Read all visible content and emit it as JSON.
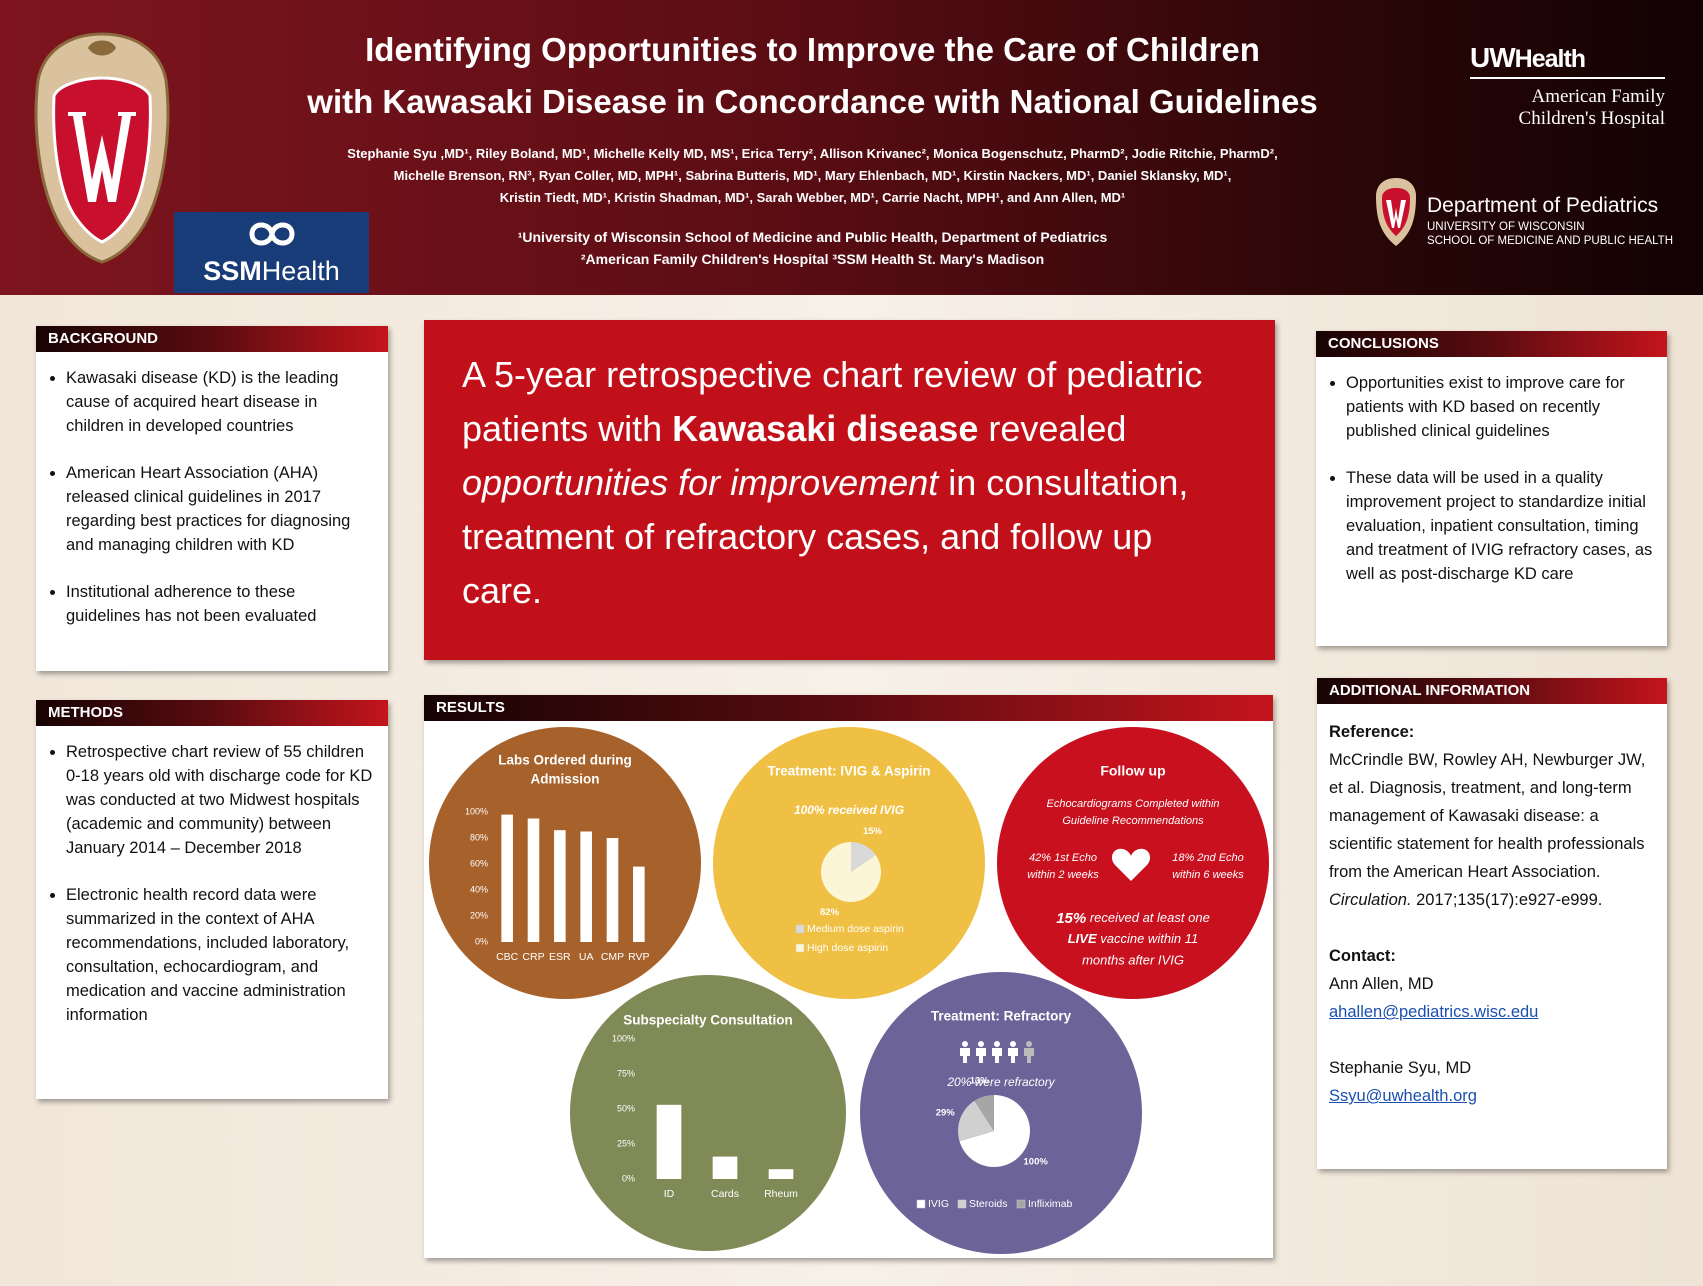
{
  "header": {
    "title": [
      "Identifying Opportunities to Improve the Care of Children",
      "with Kawasaki Disease in Concordance with National Guidelines"
    ],
    "authors": [
      "Stephanie Syu ,MD¹, Riley Boland, MD¹, Michelle Kelly MD, MS¹, Erica Terry², Allison Krivanec², Monica Bogenschutz, PharmD², Jodie Ritchie, PharmD²,",
      "Michelle Brenson, RN³, Ryan Coller, MD, MPH¹, Sabrina Butteris, MD¹, Mary Ehlenbach, MD¹, Kirstin Nackers, MD¹, Daniel Sklansky, MD¹,",
      "Kristin Tiedt, MD¹, Kristin Shadman, MD¹, Sarah Webber, MD¹, Carrie Nacht, MPH¹, and Ann Allen, MD¹"
    ],
    "affiliations": [
      "¹University of Wisconsin School of Medicine and Public Health, Department of Pediatrics",
      "²American Family Children's Hospital ³SSM Health St. Mary's Madison"
    ],
    "logos": {
      "ssm": [
        "SSM",
        "Health"
      ],
      "uw_health": [
        "UW",
        "Health"
      ],
      "hospital": [
        "American Family",
        "Children's Hospital"
      ],
      "department": "Department of Pediatrics",
      "university": "UNIVERSITY OF WISCONSIN",
      "school": "SCHOOL OF MEDICINE AND PUBLIC HEALTH"
    }
  },
  "background": {
    "heading": "BACKGROUND",
    "bullets": [
      "Kawasaki disease (KD) is the leading cause of acquired heart disease in children in developed countries",
      "American Heart Association (AHA) released clinical guidelines in 2017 regarding best practices for diagnosing and managing children with KD",
      "Institutional adherence to these guidelines has not been evaluated"
    ]
  },
  "methods": {
    "heading": "METHODS",
    "bullets": [
      "Retrospective chart review of 55 children 0-18 years old with discharge code for KD was conducted at two Midwest hospitals (academic and community) between January 2014 – December 2018",
      "Electronic health record data were summarized in the context of AHA recommendations, included laboratory, consultation, echocardiogram, and medication and vaccine administration information"
    ]
  },
  "statement": {
    "lead": "A 5-year retrospective chart review of pediatric patients with ",
    "bold": "Kawasaki disease",
    "mid": " revealed ",
    "italic": "opportunities for improvement",
    "end": " in consultation, treatment of refractory cases, and follow up care."
  },
  "results": {
    "heading": "RESULTS",
    "charts": [
      {
        "type": "bar",
        "title": [
          "Labs Ordered during",
          "Admission"
        ],
        "background": "#a7612a",
        "color": "#ffffff",
        "categories": [
          "CBC",
          "CRP",
          "ESR",
          "UA",
          "CMP",
          "RVP"
        ],
        "values": [
          98,
          95,
          86,
          85,
          80,
          58
        ],
        "ylim": [
          0,
          100
        ],
        "yticks": [
          {
            "value": 0,
            "label": "0%"
          },
          {
            "value": 20,
            "label": "20%"
          },
          {
            "value": 40,
            "label": "40%"
          },
          {
            "value": 60,
            "label": "60%"
          },
          {
            "value": 80,
            "label": "80%"
          },
          {
            "value": 100,
            "label": "100%"
          }
        ]
      },
      {
        "type": "pie",
        "title": [
          "Treatment: IVIG & Aspirin"
        ],
        "subtitle": "100% received IVIG",
        "background": "#efc043",
        "categories": [
          "Medium dose aspirin",
          "High dose aspirin"
        ],
        "values": [
          15,
          82
        ],
        "value_labels": [
          "15%",
          "82%"
        ],
        "colors": [
          "#d9d9d9",
          "#fcf6d6"
        ]
      },
      {
        "type": "bar",
        "title": [
          "Subspecialty Consultation"
        ],
        "background": "#7f8a56",
        "color": "#ffffff",
        "categories": [
          "ID",
          "Cards",
          "Rheum"
        ],
        "values": [
          53,
          16,
          7
        ],
        "ylim": [
          0,
          100
        ],
        "yticks": [
          {
            "value": 0,
            "label": "0%"
          },
          {
            "value": 25,
            "label": "25%"
          },
          {
            "value": 50,
            "label": "50%"
          },
          {
            "value": 75,
            "label": "75%"
          },
          {
            "value": 100,
            "label": "100%"
          }
        ]
      },
      {
        "type": "pie",
        "title": [
          "Treatment: Refractory"
        ],
        "subtitle": "20% were refractory",
        "background": "#6c6399",
        "categories": [
          "IVIG",
          "Steroids",
          "Infliximab"
        ],
        "values": [
          100,
          29,
          13
        ],
        "value_labels": [
          "100%",
          "29%",
          "13%"
        ],
        "colors": [
          "#ffffff",
          "#d0d0d0",
          "#a6a6a6"
        ]
      }
    ],
    "follow_up": {
      "title": "Follow up",
      "subtitle": [
        "Echocardiograms Completed within",
        "Guideline Recommendations"
      ],
      "first_echo": [
        "42% 1st Echo",
        "within 2 weeks"
      ],
      "second_echo": [
        "18% 2nd Echo",
        "within 6 weeks"
      ],
      "vaccine": {
        "bold1": "15%",
        "text1": " received at least one",
        "bold2": "LIVE",
        "text2": " vaccine within 11",
        "text3": "months after IVIG"
      }
    }
  },
  "conclusions": {
    "heading": "CONCLUSIONS",
    "bullets": [
      "Opportunities exist to improve care for patients with KD based on recently published clinical guidelines",
      "These data will be used in a quality improvement project to standardize initial evaluation, inpatient consultation, timing and treatment of IVIG refractory cases, as well as post-discharge KD care"
    ]
  },
  "additional": {
    "heading": "ADDITIONAL INFORMATION",
    "reference_label": "Reference:",
    "reference_text": "McCrindle BW, Rowley AH, Newburger JW,  et al. Diagnosis, treatment, and long-term management of Kawasaki disease: a scientific statement for health professionals from the American Heart Association. ",
    "reference_journal": "Circulation.",
    "reference_end": " 2017;135(17):e927-e999.",
    "contact_label": "Contact:",
    "contacts": [
      {
        "name": "Ann Allen, MD",
        "email": "ahallen@pediatrics.wisc.edu"
      },
      {
        "name": "Stephanie Syu, MD",
        "email": "Ssyu@uwhealth.org"
      }
    ]
  }
}
